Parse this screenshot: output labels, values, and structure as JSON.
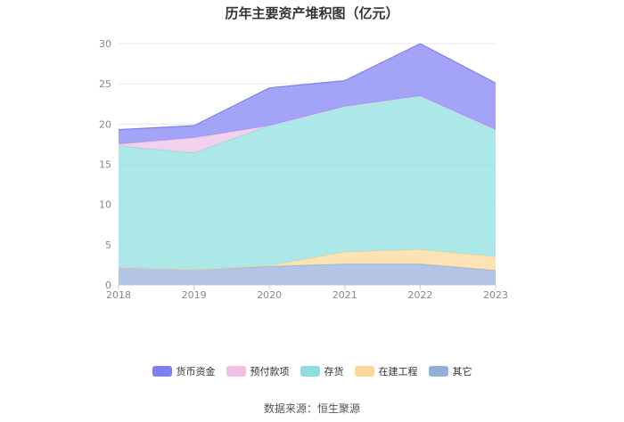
{
  "title": "历年主要资产堆积图（亿元）",
  "source": "数据来源：恒生聚源",
  "colors": {
    "货币资金": "#7f7ff5",
    "预付款项": "#efbfe4",
    "存货": "#8ddfdf",
    "在建工程": "#fbd89a",
    "其它": "#94aedc"
  },
  "chart_data": {
    "type": "area",
    "stacked": true,
    "title": "历年主要资产堆积图（亿元）",
    "xlabel": "",
    "ylabel": "",
    "x": [
      "2018",
      "2019",
      "2020",
      "2021",
      "2022",
      "2023"
    ],
    "ylim": [
      0,
      30
    ],
    "yticks": [
      0,
      5,
      10,
      15,
      20,
      25,
      30
    ],
    "grid": true,
    "legend_position": "bottom",
    "series": [
      {
        "name": "其它",
        "values": [
          2.2,
          1.9,
          2.3,
          2.6,
          2.6,
          1.8
        ]
      },
      {
        "name": "在建工程",
        "values": [
          0.0,
          0.0,
          0.1,
          1.5,
          1.8,
          1.7
        ]
      },
      {
        "name": "存货",
        "values": [
          15.1,
          14.5,
          17.4,
          18.1,
          19.1,
          15.8
        ]
      },
      {
        "name": "预付款项",
        "values": [
          0.2,
          1.9,
          0.0,
          0.0,
          0.0,
          0.0
        ]
      },
      {
        "name": "货币资金",
        "values": [
          1.8,
          1.5,
          4.7,
          3.2,
          6.5,
          5.8
        ]
      }
    ],
    "legend": [
      "货币资金",
      "预付款项",
      "存货",
      "在建工程",
      "其它"
    ]
  }
}
